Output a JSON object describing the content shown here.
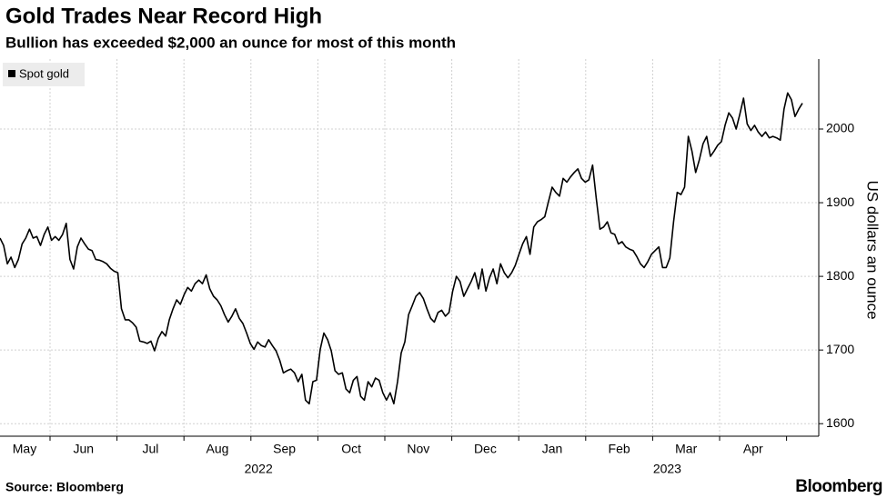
{
  "chart_data": {
    "type": "line",
    "title": "Gold Trades Near Record High",
    "subtitle": "Bullion has exceeded $2,000 an ounce for most of this month",
    "y_axis_label": "US dollars an ounce",
    "source": "Source: Bloomberg",
    "logo": "Bloomberg",
    "years": [
      {
        "label": "2022",
        "months": [
          "May",
          "Jun",
          "Jul",
          "Aug",
          "Sep",
          "Oct",
          "Nov",
          "Dec"
        ]
      },
      {
        "label": "2023",
        "months": [
          "Jan",
          "Feb",
          "Mar",
          "Apr"
        ]
      }
    ],
    "ylim": [
      1583,
      2095
    ],
    "yticks": [
      1600,
      1700,
      1800,
      1900,
      2000
    ],
    "grid": true,
    "legend": "top-left",
    "series": [
      {
        "name": "Spot gold",
        "color": "#000000",
        "values": [
          1852,
          1842,
          1817,
          1826,
          1812,
          1823,
          1844,
          1852,
          1864,
          1852,
          1854,
          1842,
          1857,
          1867,
          1849,
          1854,
          1849,
          1857,
          1872,
          1823,
          1810,
          1840,
          1852,
          1844,
          1837,
          1835,
          1823,
          1822,
          1820,
          1817,
          1811,
          1807,
          1805,
          1756,
          1741,
          1741,
          1737,
          1731,
          1712,
          1711,
          1709,
          1712,
          1699,
          1716,
          1725,
          1719,
          1741,
          1756,
          1768,
          1762,
          1775,
          1785,
          1780,
          1790,
          1795,
          1790,
          1802,
          1783,
          1773,
          1768,
          1760,
          1748,
          1738,
          1746,
          1756,
          1743,
          1736,
          1723,
          1709,
          1701,
          1711,
          1706,
          1704,
          1714,
          1706,
          1699,
          1686,
          1669,
          1672,
          1674,
          1669,
          1657,
          1667,
          1632,
          1627,
          1657,
          1659,
          1701,
          1723,
          1714,
          1699,
          1672,
          1667,
          1669,
          1647,
          1642,
          1659,
          1664,
          1637,
          1632,
          1657,
          1650,
          1662,
          1659,
          1642,
          1632,
          1642,
          1627,
          1657,
          1696,
          1711,
          1748,
          1760,
          1773,
          1778,
          1770,
          1756,
          1743,
          1738,
          1751,
          1754,
          1746,
          1751,
          1780,
          1800,
          1793,
          1773,
          1783,
          1793,
          1805,
          1783,
          1810,
          1780,
          1798,
          1810,
          1790,
          1817,
          1805,
          1798,
          1805,
          1815,
          1830,
          1844,
          1854,
          1830,
          1867,
          1874,
          1877,
          1881,
          1901,
          1921,
          1914,
          1909,
          1933,
          1928,
          1935,
          1941,
          1946,
          1933,
          1928,
          1931,
          1951,
          1906,
          1864,
          1867,
          1874,
          1859,
          1857,
          1844,
          1847,
          1840,
          1837,
          1835,
          1827,
          1817,
          1812,
          1820,
          1830,
          1835,
          1840,
          1812,
          1812,
          1825,
          1874,
          1914,
          1911,
          1921,
          1990,
          1970,
          1941,
          1958,
          1980,
          1990,
          1963,
          1970,
          1978,
          1983,
          2005,
          2022,
          2015,
          2000,
          2020,
          2042,
          2007,
          1998,
          2005,
          1996,
          1990,
          1996,
          1988,
          1990,
          1988,
          1985,
          2027,
          2049,
          2040,
          2017,
          2027,
          2035
        ]
      }
    ]
  }
}
